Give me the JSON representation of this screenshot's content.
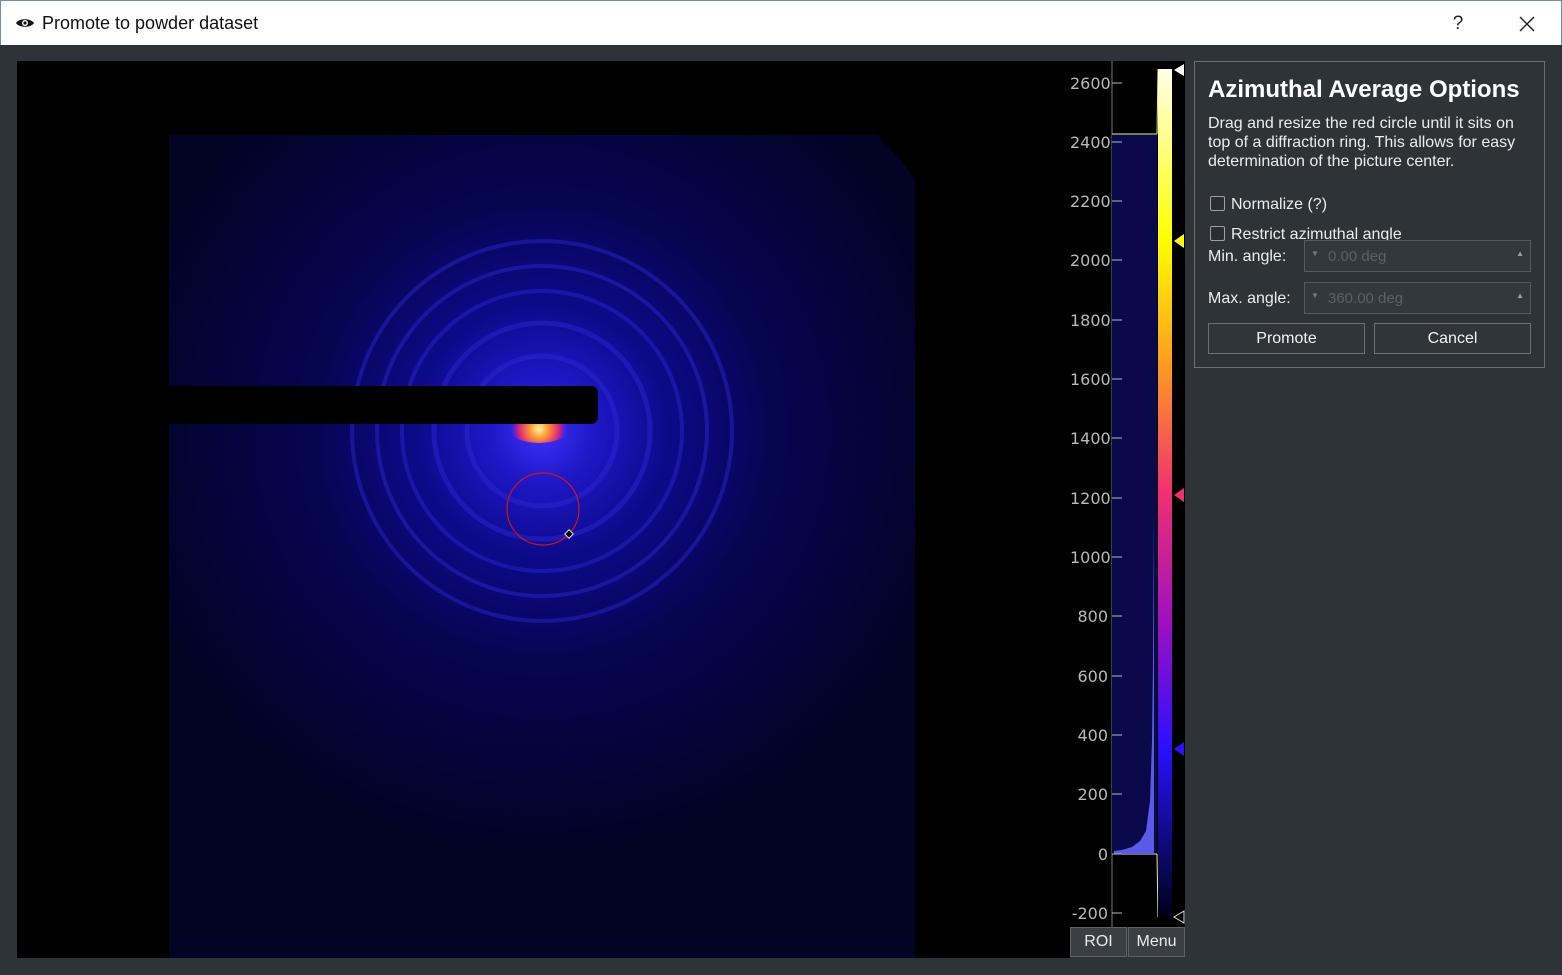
{
  "window": {
    "title": "Promote to powder dataset",
    "help": "?"
  },
  "histogram": {
    "ticks": [
      "2600",
      "2400",
      "2200",
      "2000",
      "1800",
      "1600",
      "1400",
      "1200",
      "1000",
      "800",
      "600",
      "400",
      "200",
      "0",
      "-200"
    ],
    "roi_button": "ROI",
    "menu_button": "Menu"
  },
  "options": {
    "title": "Azimuthal Average Options",
    "description": "Drag and resize the red circle until it sits on top of a diffraction ring. This allows for easy determination of the picture center.",
    "normalize_label": "Normalize (?)",
    "restrict_label": "Restrict azimuthal angle",
    "min_angle_label": "Min. angle:",
    "min_angle_value": "0.00 deg",
    "max_angle_label": "Max. angle:",
    "max_angle_value": "360.00 deg",
    "promote_button": "Promote",
    "cancel_button": "Cancel"
  },
  "colors": {
    "roi_circle": "#d01616",
    "background": "#2e3338"
  }
}
